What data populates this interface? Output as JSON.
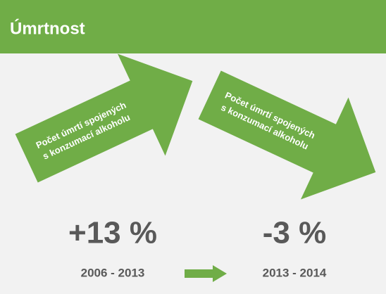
{
  "header": {
    "title": "Úmrtnost"
  },
  "panels": [
    {
      "arrow_text": [
        "Počet úmrtí spojených",
        "s konzumací alkoholu"
      ],
      "change": "+13 %",
      "period": "2006 - 2013"
    },
    {
      "arrow_text": [
        "Počet úmrtí spojených",
        "s konzumací alkoholu"
      ],
      "change": "-3 %",
      "period": "2013 - 2014"
    }
  ]
}
